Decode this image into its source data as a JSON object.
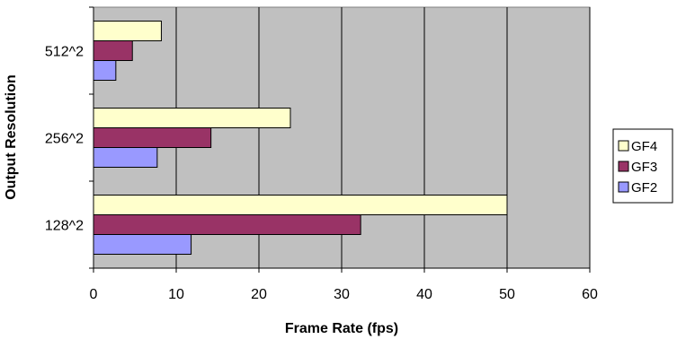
{
  "chart_data": {
    "type": "bar",
    "orientation": "horizontal",
    "categories": [
      "128^2",
      "256^2",
      "512^2"
    ],
    "series": [
      {
        "name": "GF4",
        "values": [
          50,
          23.8,
          8.2
        ],
        "color": "#ffffcc"
      },
      {
        "name": "GF3",
        "values": [
          32.3,
          14.2,
          4.7
        ],
        "color": "#993366"
      },
      {
        "name": "GF2",
        "values": [
          11.8,
          7.7,
          2.7
        ],
        "color": "#9999ff"
      }
    ],
    "legend_order": [
      "GF4",
      "GF3",
      "GF2"
    ],
    "xlabel": "Frame Rate (fps)",
    "ylabel": "Output Resolution",
    "xlim": [
      0,
      60
    ],
    "xticks": [
      0,
      10,
      20,
      30,
      40,
      50,
      60
    ],
    "grid": true,
    "legend": "right",
    "plot_background": "#c0c0c0"
  }
}
